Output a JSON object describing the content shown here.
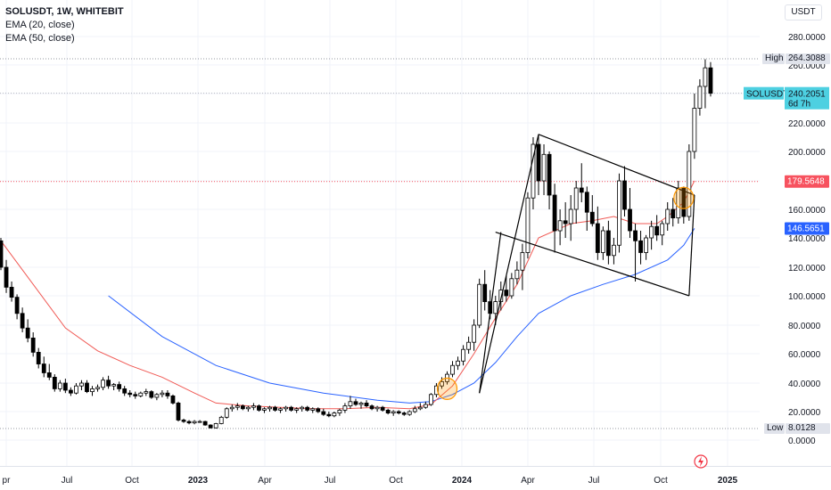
{
  "header": {
    "title": "SOLUSDT, 1W, WHITEBIT",
    "indicators": [
      "EMA (20, close)",
      "EMA (50, close)"
    ],
    "currency": "USDT"
  },
  "price_labels": {
    "high_tag": "High",
    "high_value": "264.3088",
    "low_tag": "Low",
    "low_value": "8.0128",
    "symbol_tag": "SOLUSDT",
    "last_value": "240.2051",
    "countdown": "6d 7h",
    "level_value": "179.5648",
    "ema_value": "146.5651"
  },
  "colors": {
    "up": "#ffffff",
    "down": "#000000",
    "ema20": "#f05a55",
    "ema50": "#2962ff",
    "last_price": "#4dd0e1",
    "level": "#f7525f",
    "ema_tag": "#2962ff",
    "highlight": "#ff9800"
  },
  "chart_data": {
    "type": "candlestick",
    "symbol": "SOLUSDT",
    "interval": "1W",
    "exchange": "WHITEBIT",
    "x_tick_labels": [
      "pr",
      "Jul",
      "Oct",
      "2023",
      "Apr",
      "Jul",
      "Oct",
      "2024",
      "Apr",
      "Jul",
      "Oct",
      "2025"
    ],
    "y_tick_labels": [
      "280.0000",
      "260.0000",
      "240.0000",
      "220.0000",
      "200.0000",
      "180.0000",
      "160.0000",
      "140.0000",
      "120.0000",
      "100.0000",
      "80.0000",
      "60.0000",
      "40.0000",
      "20.0000",
      "0.0000"
    ],
    "y_scale": "log",
    "ylim": [
      0,
      290
    ],
    "candles": [
      [
        138,
        140,
        118,
        120
      ],
      [
        120,
        125,
        102,
        106
      ],
      [
        106,
        110,
        96,
        99
      ],
      [
        99,
        101,
        84,
        88
      ],
      [
        88,
        92,
        75,
        78
      ],
      [
        78,
        84,
        68,
        71
      ],
      [
        71,
        75,
        58,
        61
      ],
      [
        61,
        64,
        50,
        53
      ],
      [
        53,
        58,
        44,
        47
      ],
      [
        47,
        53,
        42,
        44
      ],
      [
        44,
        46,
        34,
        36
      ],
      [
        36,
        42,
        34,
        40
      ],
      [
        40,
        43,
        33,
        35
      ],
      [
        35,
        37,
        31,
        33
      ],
      [
        33,
        40,
        32,
        38
      ],
      [
        38,
        42,
        35,
        40
      ],
      [
        40,
        42,
        33,
        34
      ],
      [
        34,
        38,
        31,
        36
      ],
      [
        36,
        39,
        34,
        37
      ],
      [
        37,
        44,
        35,
        42
      ],
      [
        42,
        45,
        36,
        38
      ],
      [
        38,
        40,
        35,
        39
      ],
      [
        39,
        41,
        34,
        36
      ],
      [
        36,
        38,
        31,
        33
      ],
      [
        33,
        35,
        30,
        32
      ],
      [
        32,
        34,
        29,
        31
      ],
      [
        31,
        34,
        30,
        33
      ],
      [
        33,
        36,
        31,
        34
      ],
      [
        34,
        35,
        29,
        30
      ],
      [
        30,
        33,
        28,
        32
      ],
      [
        32,
        35,
        30,
        33
      ],
      [
        33,
        35,
        29,
        31
      ],
      [
        31,
        32,
        25,
        26
      ],
      [
        26,
        27,
        13,
        14
      ],
      [
        14,
        15,
        12,
        13
      ],
      [
        13,
        14,
        11,
        12
      ],
      [
        12,
        14,
        11,
        13
      ],
      [
        13,
        14,
        12,
        13
      ],
      [
        13,
        13.5,
        10,
        10.5
      ],
      [
        10.5,
        11,
        8,
        8.5
      ],
      [
        8.5,
        12,
        8,
        11.5
      ],
      [
        11.5,
        17,
        11,
        16
      ],
      [
        16,
        23,
        15,
        22
      ],
      [
        22,
        25,
        20,
        23
      ],
      [
        23,
        26,
        21,
        24
      ],
      [
        24,
        25,
        21,
        22
      ],
      [
        22,
        24,
        20,
        23
      ],
      [
        23,
        26,
        21,
        24
      ],
      [
        24,
        25,
        20,
        21
      ],
      [
        21,
        23,
        19,
        22
      ],
      [
        22,
        24,
        20,
        23
      ],
      [
        23,
        24,
        20,
        21
      ],
      [
        21,
        23,
        19,
        22
      ],
      [
        22,
        24,
        20,
        23
      ],
      [
        23,
        24,
        20,
        21
      ],
      [
        21,
        23,
        19,
        22
      ],
      [
        22,
        24,
        20,
        23
      ],
      [
        23,
        24,
        20,
        21
      ],
      [
        21,
        23,
        19,
        22
      ],
      [
        22,
        23,
        19,
        20
      ],
      [
        20,
        22,
        17,
        18
      ],
      [
        18,
        20,
        16,
        17
      ],
      [
        17,
        20,
        16,
        19
      ],
      [
        19,
        22,
        17,
        21
      ],
      [
        21,
        26,
        19,
        24
      ],
      [
        24,
        31,
        22,
        27
      ],
      [
        27,
        29,
        24,
        25
      ],
      [
        25,
        27,
        22,
        26
      ],
      [
        26,
        28,
        23,
        24
      ],
      [
        24,
        25,
        21,
        22
      ],
      [
        22,
        24,
        20,
        23
      ],
      [
        23,
        24,
        20,
        21
      ],
      [
        21,
        22,
        18,
        19
      ],
      [
        19,
        21,
        17,
        20
      ],
      [
        20,
        21,
        18,
        19
      ],
      [
        19,
        20,
        17,
        18
      ],
      [
        18,
        21,
        17,
        20
      ],
      [
        20,
        24,
        19,
        22
      ],
      [
        22,
        26,
        21,
        23
      ],
      [
        23,
        27,
        22,
        25
      ],
      [
        25,
        33,
        24,
        32
      ],
      [
        32,
        40,
        30,
        38
      ],
      [
        38,
        44,
        36,
        41
      ],
      [
        41,
        48,
        39,
        46
      ],
      [
        46,
        55,
        44,
        52
      ],
      [
        52,
        58,
        49,
        55
      ],
      [
        55,
        66,
        52,
        63
      ],
      [
        63,
        72,
        60,
        68
      ],
      [
        68,
        84,
        62,
        80
      ],
      [
        80,
        112,
        78,
        108
      ],
      [
        108,
        118,
        90,
        96
      ],
      [
        96,
        104,
        84,
        88
      ],
      [
        88,
        100,
        80,
        96
      ],
      [
        96,
        110,
        90,
        104
      ],
      [
        104,
        114,
        96,
        100
      ],
      [
        100,
        116,
        98,
        112
      ],
      [
        112,
        124,
        108,
        118
      ],
      [
        118,
        136,
        104,
        130
      ],
      [
        130,
        172,
        126,
        168
      ],
      [
        168,
        210,
        160,
        205
      ],
      [
        205,
        212,
        170,
        180
      ],
      [
        180,
        205,
        170,
        198
      ],
      [
        198,
        200,
        160,
        170
      ],
      [
        170,
        178,
        130,
        145
      ],
      [
        145,
        160,
        135,
        152
      ],
      [
        152,
        165,
        140,
        150
      ],
      [
        150,
        170,
        138,
        160
      ],
      [
        160,
        180,
        150,
        175
      ],
      [
        175,
        192,
        165,
        172
      ],
      [
        172,
        176,
        145,
        158
      ],
      [
        158,
        170,
        148,
        150
      ],
      [
        150,
        162,
        125,
        130
      ],
      [
        130,
        148,
        125,
        145
      ],
      [
        145,
        152,
        122,
        128
      ],
      [
        128,
        140,
        122,
        135
      ],
      [
        135,
        185,
        130,
        180
      ],
      [
        180,
        190,
        155,
        160
      ],
      [
        160,
        175,
        140,
        145
      ],
      [
        145,
        150,
        110,
        138
      ],
      [
        138,
        145,
        122,
        130
      ],
      [
        130,
        142,
        125,
        140
      ],
      [
        140,
        152,
        132,
        148
      ],
      [
        148,
        156,
        138,
        142
      ],
      [
        142,
        152,
        135,
        150
      ],
      [
        150,
        165,
        145,
        160
      ],
      [
        160,
        168,
        148,
        154
      ],
      [
        154,
        180,
        150,
        175
      ],
      [
        175,
        176,
        150,
        155
      ],
      [
        155,
        205,
        152,
        200
      ],
      [
        200,
        240,
        195,
        230
      ],
      [
        230,
        250,
        225,
        245
      ],
      [
        245,
        264,
        230,
        258
      ],
      [
        258,
        262,
        238,
        240.2
      ]
    ],
    "ema20_points": [
      [
        0,
        138
      ],
      [
        6,
        108
      ],
      [
        12,
        78
      ],
      [
        18,
        62
      ],
      [
        24,
        52
      ],
      [
        30,
        44
      ],
      [
        36,
        33
      ],
      [
        40,
        26
      ],
      [
        46,
        24
      ],
      [
        52,
        23
      ],
      [
        58,
        22
      ],
      [
        64,
        22
      ],
      [
        70,
        23
      ],
      [
        76,
        22
      ],
      [
        80,
        25
      ],
      [
        84,
        38
      ],
      [
        88,
        60
      ],
      [
        92,
        85
      ],
      [
        96,
        108
      ],
      [
        100,
        140
      ],
      [
        106,
        150
      ],
      [
        110,
        152
      ],
      [
        114,
        155
      ],
      [
        118,
        150
      ],
      [
        122,
        150
      ],
      [
        124,
        155
      ],
      [
        127,
        165
      ],
      [
        129,
        180
      ]
    ],
    "ema50_points": [
      [
        20,
        100
      ],
      [
        30,
        72
      ],
      [
        40,
        52
      ],
      [
        50,
        40
      ],
      [
        60,
        33
      ],
      [
        70,
        28
      ],
      [
        76,
        26
      ],
      [
        80,
        27
      ],
      [
        84,
        32
      ],
      [
        88,
        40
      ],
      [
        92,
        54
      ],
      [
        96,
        72
      ],
      [
        100,
        88
      ],
      [
        106,
        100
      ],
      [
        112,
        108
      ],
      [
        118,
        115
      ],
      [
        124,
        125
      ],
      [
        127,
        135
      ],
      [
        129,
        146.6
      ]
    ],
    "annotations": {
      "horizontal_level": 179.56,
      "channel_upper": [
        [
          89,
          33
        ],
        [
          100,
          212
        ],
        [
          129,
          170
        ]
      ],
      "channel_lower": [
        [
          92,
          144
        ],
        [
          116,
          115
        ],
        [
          128,
          100
        ]
      ],
      "highlights": [
        [
          83,
          36
        ],
        [
          127,
          168
        ]
      ]
    }
  }
}
